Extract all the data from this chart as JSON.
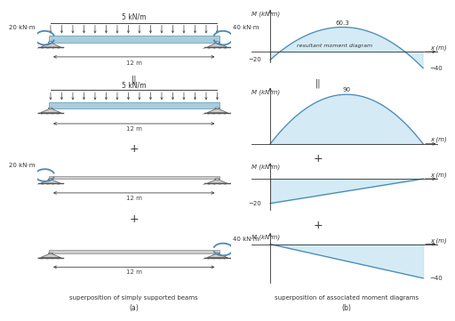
{
  "bg_color": "#ffffff",
  "fill_color": "#b8dff0",
  "fill_alpha": 0.6,
  "line_color": "#4a8ab5",
  "text_color": "#333333",
  "moment_arrow_color": "#4a8ab5",
  "beam_fill_color": "#aaccdd",
  "udl_label": "5 kN/m",
  "moment_left": "20 kN·m",
  "moment_right": "40 kN·m",
  "length_label": "12 m",
  "resultant_peak": "60.3",
  "parabola_peak": "90",
  "caption_a": "superposition of simply supported beams",
  "caption_b": "superposition of associated moment diagrams",
  "sub_a": "(a)",
  "sub_b": "(b)"
}
